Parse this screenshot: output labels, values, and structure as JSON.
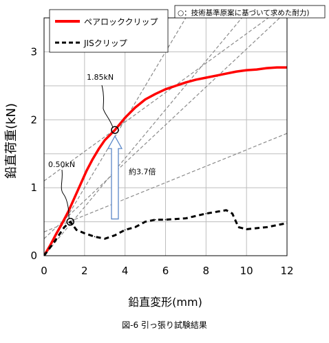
{
  "chart_data": {
    "type": "line",
    "caption": "図-6 引っ張り試験結果",
    "xlabel": "鉛直変形(mm)",
    "ylabel": "鉛直荷重(kN)",
    "xlim": [
      0,
      12
    ],
    "ylim": [
      0,
      3.5
    ],
    "xticks": [
      "0",
      "2",
      "4",
      "6",
      "8",
      "10",
      "12"
    ],
    "yticks": [
      "0",
      "1",
      "2",
      "3"
    ],
    "grid": true,
    "legend_position": "top-left",
    "note": "○：技術基準原案に基づいて求めた耐力)",
    "series": [
      {
        "name": "ペアロッククリップ",
        "color": "#ff0000",
        "style": "solid",
        "x": [
          0,
          0.3,
          0.6,
          0.9,
          1.2,
          1.5,
          1.8,
          2.1,
          2.4,
          2.7,
          3.0,
          3.5,
          4.0,
          4.5,
          5.0,
          5.5,
          6.0,
          6.5,
          7.0,
          7.5,
          8.0,
          8.5,
          9.0,
          9.5,
          10.0,
          10.5,
          11.0,
          11.5,
          12.0
        ],
        "values": [
          0,
          0.15,
          0.32,
          0.48,
          0.65,
          0.85,
          1.05,
          1.25,
          1.42,
          1.57,
          1.7,
          1.85,
          2.03,
          2.18,
          2.3,
          2.38,
          2.45,
          2.5,
          2.55,
          2.59,
          2.62,
          2.65,
          2.68,
          2.71,
          2.73,
          2.74,
          2.76,
          2.77,
          2.77
        ]
      },
      {
        "name": "JISクリップ",
        "color": "#000000",
        "style": "dashed",
        "x": [
          0,
          0.5,
          1.0,
          1.3,
          1.6,
          2.0,
          2.5,
          3.0,
          3.5,
          4.0,
          4.5,
          5.0,
          5.5,
          6.0,
          7.0,
          8.0,
          9.0,
          9.3,
          9.6,
          10.0,
          11.0,
          12.0
        ],
        "values": [
          0,
          0.2,
          0.42,
          0.5,
          0.38,
          0.33,
          0.28,
          0.25,
          0.3,
          0.38,
          0.42,
          0.5,
          0.53,
          0.53,
          0.55,
          0.62,
          0.67,
          0.62,
          0.42,
          0.39,
          0.42,
          0.48
        ]
      }
    ],
    "reference_lines": [
      {
        "x1": 0,
        "y1": 0.0,
        "x2": 12,
        "y2": 6.0
      },
      {
        "x1": 0,
        "y1": 0.0,
        "x2": 12,
        "y2": 4.3
      },
      {
        "x1": 0,
        "y1": 0.25,
        "x2": 12,
        "y2": 3.6
      },
      {
        "x1": 0,
        "y1": 1.1,
        "x2": 12,
        "y2": 3.7
      },
      {
        "x1": 0,
        "y1": 0.35,
        "x2": 12,
        "y2": 1.8
      }
    ],
    "markers": [
      {
        "x": 3.5,
        "y": 1.85,
        "label": "1.85kN"
      },
      {
        "x": 1.3,
        "y": 0.5,
        "label": "0.50kN"
      }
    ],
    "arrow_annotation": {
      "x": 3.5,
      "from": 0.5,
      "to": 1.85,
      "label": "約3.7倍"
    }
  }
}
